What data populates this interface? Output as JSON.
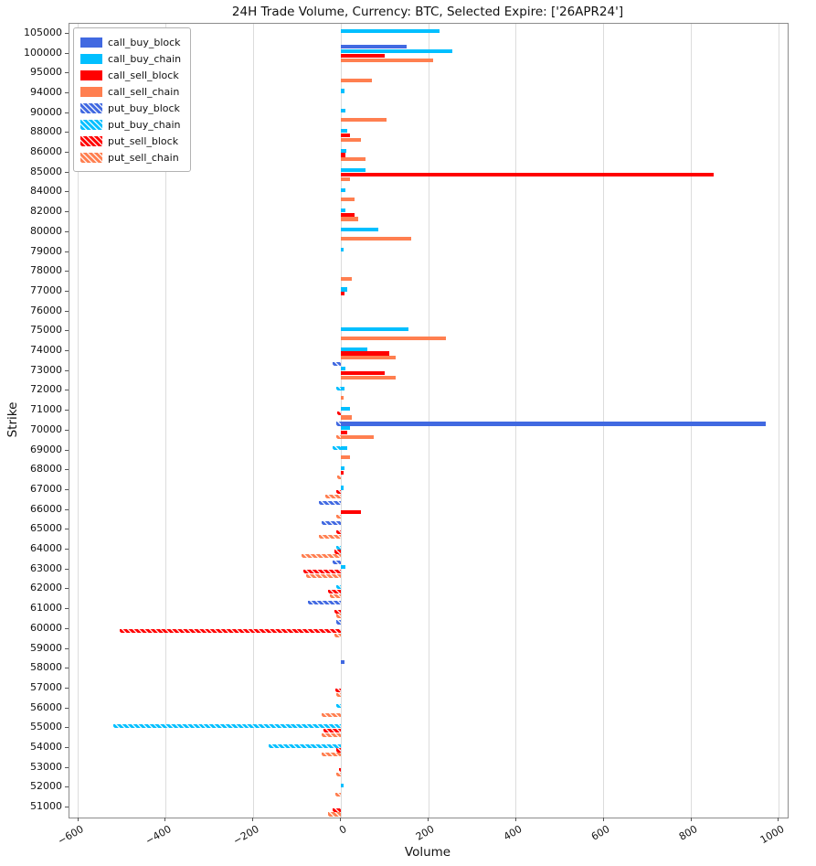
{
  "chart_data": {
    "type": "bar",
    "orientation": "horizontal",
    "title": "24H Trade Volume, Currency: BTC, Selected Expire: ['26APR24']",
    "xlabel": "Volume",
    "ylabel": "Strike",
    "xlim": [
      -620,
      1020
    ],
    "x_ticks": [
      -600,
      -400,
      -200,
      0,
      200,
      400,
      600,
      800,
      1000
    ],
    "x_tick_labels": [
      "−600",
      "−400",
      "−200",
      "0",
      "200",
      "400",
      "600",
      "800",
      "1000"
    ],
    "grid": true,
    "legend_position": "upper left",
    "strikes": [
      105000,
      100000,
      95000,
      94000,
      90000,
      88000,
      86000,
      85000,
      84000,
      82000,
      80000,
      79000,
      78000,
      77000,
      76000,
      75000,
      74000,
      73000,
      72000,
      71000,
      70000,
      69000,
      68000,
      67000,
      66000,
      65000,
      64000,
      63000,
      62000,
      61000,
      60000,
      59000,
      58000,
      57000,
      56000,
      55000,
      54000,
      53000,
      52000,
      51000
    ],
    "series": [
      {
        "name": "call_buy_block",
        "color": "#4169e1",
        "hatch": false,
        "values": [
          0,
          150,
          0,
          0,
          0,
          0,
          0,
          0,
          0,
          0,
          0,
          0,
          0,
          0,
          0,
          0,
          0,
          0,
          0,
          0,
          970,
          0,
          0,
          0,
          0,
          0,
          0,
          0,
          0,
          0,
          0,
          0,
          8,
          0,
          0,
          0,
          0,
          0,
          0,
          0
        ]
      },
      {
        "name": "call_buy_chain",
        "color": "#00bfff",
        "hatch": false,
        "values": [
          225,
          255,
          0,
          8,
          10,
          15,
          12,
          55,
          10,
          10,
          85,
          5,
          0,
          15,
          0,
          155,
          60,
          10,
          8,
          20,
          20,
          15,
          8,
          5,
          0,
          0,
          0,
          10,
          0,
          0,
          0,
          0,
          0,
          0,
          0,
          0,
          0,
          0,
          5,
          0
        ]
      },
      {
        "name": "call_sell_block",
        "color": "#ff0000",
        "hatch": false,
        "values": [
          0,
          100,
          0,
          0,
          0,
          20,
          10,
          850,
          0,
          30,
          0,
          0,
          0,
          8,
          0,
          0,
          110,
          100,
          0,
          0,
          15,
          0,
          5,
          0,
          45,
          0,
          0,
          0,
          0,
          0,
          0,
          0,
          0,
          0,
          0,
          0,
          0,
          0,
          0,
          0
        ]
      },
      {
        "name": "call_sell_chain",
        "color": "#ff7f50",
        "hatch": false,
        "values": [
          0,
          210,
          70,
          0,
          105,
          45,
          55,
          20,
          30,
          40,
          160,
          0,
          25,
          0,
          0,
          240,
          125,
          125,
          5,
          25,
          75,
          20,
          0,
          0,
          0,
          0,
          0,
          0,
          0,
          0,
          0,
          0,
          0,
          0,
          0,
          0,
          0,
          0,
          0,
          0
        ]
      },
      {
        "name": "put_buy_block",
        "color": "#4169e1",
        "hatch": true,
        "values": [
          0,
          0,
          0,
          0,
          0,
          0,
          0,
          0,
          0,
          0,
          0,
          0,
          0,
          0,
          0,
          0,
          0,
          -20,
          0,
          0,
          -10,
          0,
          0,
          0,
          -50,
          -45,
          0,
          -20,
          0,
          -75,
          -10,
          0,
          0,
          0,
          0,
          0,
          0,
          0,
          0,
          0
        ]
      },
      {
        "name": "put_buy_chain",
        "color": "#00bfff",
        "hatch": true,
        "values": [
          0,
          0,
          0,
          0,
          0,
          0,
          0,
          0,
          0,
          0,
          0,
          0,
          0,
          0,
          0,
          0,
          0,
          0,
          -10,
          0,
          0,
          -20,
          0,
          0,
          0,
          0,
          -10,
          0,
          -10,
          0,
          0,
          0,
          0,
          0,
          -10,
          -520,
          -165,
          0,
          0,
          0
        ]
      },
      {
        "name": "put_sell_block",
        "color": "#ff0000",
        "hatch": true,
        "values": [
          0,
          0,
          0,
          0,
          0,
          0,
          0,
          0,
          0,
          0,
          0,
          0,
          0,
          0,
          0,
          0,
          0,
          0,
          0,
          -8,
          0,
          0,
          0,
          -10,
          0,
          -10,
          -15,
          -85,
          -30,
          -15,
          -505,
          0,
          0,
          -12,
          0,
          -40,
          -10,
          -5,
          0,
          -20
        ]
      },
      {
        "name": "put_sell_chain",
        "color": "#ff7f50",
        "hatch": true,
        "values": [
          0,
          0,
          0,
          0,
          0,
          0,
          0,
          0,
          0,
          0,
          0,
          0,
          0,
          0,
          0,
          0,
          0,
          0,
          0,
          0,
          -10,
          0,
          -8,
          -35,
          -10,
          -50,
          -90,
          -80,
          -25,
          -10,
          -15,
          0,
          0,
          -10,
          -45,
          -45,
          -45,
          -10,
          -12,
          -30
        ]
      }
    ]
  }
}
